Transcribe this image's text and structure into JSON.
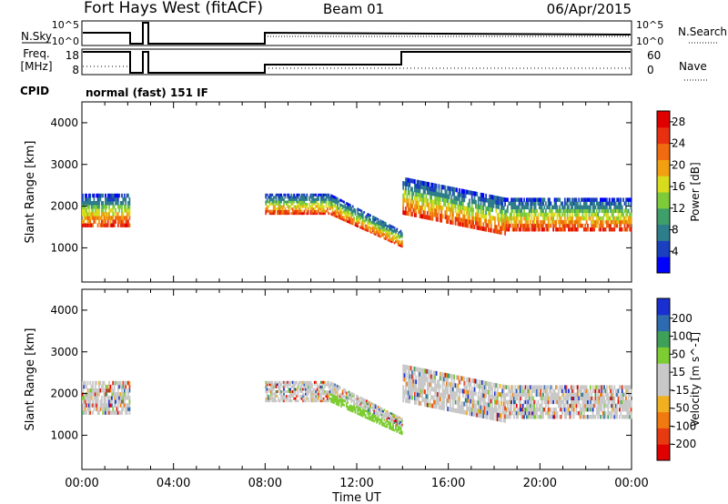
{
  "header": {
    "station": "Fort Hays West (fitACF)",
    "beam": "Beam 01",
    "date": "06/Apr/2015"
  },
  "top_panels": {
    "nsky_label": "N.Sky",
    "nsearch_label": "N.Search",
    "nsky_ticks": [
      "10^5",
      "10^0"
    ],
    "nsearch_ticks": [
      "10^5",
      "10^0"
    ],
    "freq_label": "Freq.",
    "freq_unit": "[MHz]",
    "freq_ticks": [
      "18",
      "8"
    ],
    "nave_label": "Nave",
    "nave_ticks": [
      "60",
      "0"
    ],
    "cpid_label": "CPID",
    "cpid_value": "normal (fast) 151 IF"
  },
  "colors": {
    "power": [
      "#0000ff",
      "#1a3fbf",
      "#2e7d8a",
      "#3f9f6a",
      "#7ecb3a",
      "#d8dc1e",
      "#f0a010",
      "#f06a10",
      "#e83010",
      "#e00000"
    ],
    "velocity": [
      "#1a2fcf",
      "#2e6ab0",
      "#3fa05a",
      "#7ccc32",
      "#c8c8c8",
      "#c8c8c8",
      "#f0b020",
      "#f07a10",
      "#e83a10",
      "#e00000"
    ]
  },
  "chart_data": [
    {
      "type": "heatmap",
      "name": "power",
      "ylabel": "Slant Range [km]",
      "xlabel": "Time UT",
      "x_ticks": [
        "00:00",
        "04:00",
        "08:00",
        "12:00",
        "16:00",
        "20:00",
        "00:00"
      ],
      "xlim": [
        0,
        24
      ],
      "ylim": [
        180,
        4500
      ],
      "y_ticks": [
        1000,
        2000,
        3000,
        4000
      ],
      "colorbar_label": "Power [dB]",
      "colorbar_ticks": [
        4,
        8,
        12,
        16,
        20,
        24,
        28
      ],
      "colorbar_range": [
        0,
        30
      ],
      "echo_bands": [
        {
          "t0": 0.0,
          "t1": 2.1,
          "r_low": 1500,
          "r_high": 2300
        },
        {
          "t0": 8.0,
          "t1": 10.8,
          "r_low": 1800,
          "r_high": 2300
        },
        {
          "t0": 10.8,
          "t1": 14.0,
          "r_low": 1000,
          "r_high": 2100
        },
        {
          "t0": 14.0,
          "t1": 18.5,
          "r_low": 1300,
          "r_high": 2700
        },
        {
          "t0": 18.5,
          "t1": 24.0,
          "r_low": 1400,
          "r_high": 2200
        }
      ]
    },
    {
      "type": "heatmap",
      "name": "velocity",
      "ylabel": "Slant Range [km]",
      "xlabel": "Time UT",
      "x_ticks": [
        "00:00",
        "04:00",
        "08:00",
        "12:00",
        "16:00",
        "20:00",
        "00:00"
      ],
      "xlim": [
        0,
        24
      ],
      "ylim": [
        180,
        4500
      ],
      "y_ticks": [
        1000,
        2000,
        3000,
        4000
      ],
      "colorbar_label": "Velocity [m s^-1]",
      "colorbar_ticks": [
        200,
        100,
        50,
        15,
        -15,
        -50,
        -100,
        -200
      ],
      "echo_bands": [
        {
          "t0": 0.0,
          "t1": 2.1,
          "r_low": 1500,
          "r_high": 2300
        },
        {
          "t0": 8.0,
          "t1": 10.8,
          "r_low": 1800,
          "r_high": 2300
        },
        {
          "t0": 10.8,
          "t1": 14.0,
          "r_low": 1000,
          "r_high": 2100
        },
        {
          "t0": 14.0,
          "t1": 18.5,
          "r_low": 1300,
          "r_high": 2700
        },
        {
          "t0": 18.5,
          "t1": 24.0,
          "r_low": 1400,
          "r_high": 2200
        }
      ]
    }
  ]
}
